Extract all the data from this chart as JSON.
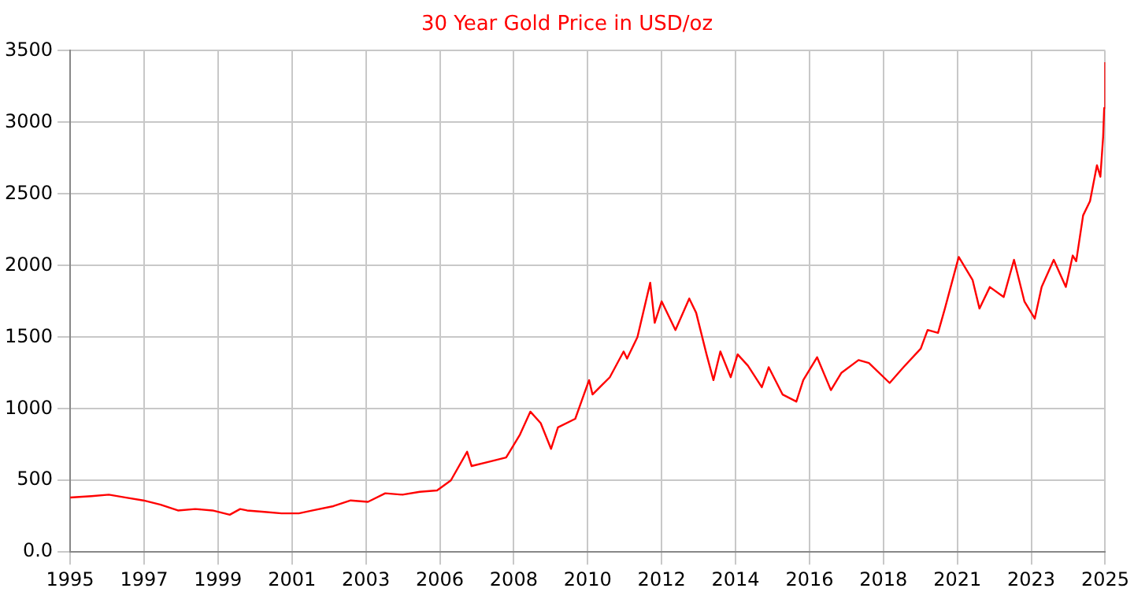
{
  "chart_data": {
    "type": "line",
    "title": "30 Year Gold Price in USD/oz",
    "xlim": [
      1994.88,
      2024.84
    ],
    "xticks": [
      {
        "value": 1994.88,
        "label": "1995"
      },
      {
        "value": 1997.02,
        "label": "1997"
      },
      {
        "value": 1999.16,
        "label": "1999"
      },
      {
        "value": 2001.3,
        "label": "2001"
      },
      {
        "value": 2003.44,
        "label": "2003"
      },
      {
        "value": 2005.58,
        "label": "2006"
      },
      {
        "value": 2007.72,
        "label": "2008"
      },
      {
        "value": 2009.86,
        "label": "2010"
      },
      {
        "value": 2012.0,
        "label": "2012"
      },
      {
        "value": 2014.14,
        "label": "2014"
      },
      {
        "value": 2016.28,
        "label": "2016"
      },
      {
        "value": 2018.42,
        "label": "2018"
      },
      {
        "value": 2020.56,
        "label": "2021"
      },
      {
        "value": 2022.7,
        "label": "2023"
      },
      {
        "value": 2024.84,
        "label": "2025"
      }
    ],
    "ylim": [
      0,
      3500
    ],
    "yticks": [
      {
        "value": 0,
        "label": "0.0"
      },
      500,
      1000,
      1500,
      2000,
      2500,
      3000,
      3500
    ],
    "grid": true,
    "legend": false,
    "marker": "none",
    "line_style": "solid",
    "series": [
      {
        "color": "#ff0000",
        "x": [
          1994.88,
          1995.5,
          1996.0,
          1996.5,
          1997.0,
          1997.5,
          1998.0,
          1998.5,
          1999.0,
          1999.5,
          1999.8,
          2000.0,
          2000.5,
          2001.0,
          2001.5,
          2001.9,
          2002.5,
          2003.0,
          2003.5,
          2004.0,
          2004.5,
          2005.0,
          2005.5,
          2005.9,
          2006.37,
          2006.5,
          2007.0,
          2007.5,
          2007.9,
          2008.2,
          2008.5,
          2008.8,
          2009.0,
          2009.5,
          2009.9,
          2010.0,
          2010.5,
          2010.9,
          2011.0,
          2011.3,
          2011.67,
          2011.8,
          2012.0,
          2012.4,
          2012.8,
          2013.0,
          2013.3,
          2013.5,
          2013.7,
          2014.0,
          2014.2,
          2014.5,
          2014.9,
          2015.1,
          2015.5,
          2015.9,
          2016.1,
          2016.5,
          2016.9,
          2017.2,
          2017.7,
          2018.0,
          2018.6,
          2019.0,
          2019.5,
          2019.7,
          2020.0,
          2020.2,
          2020.6,
          2021.0,
          2021.2,
          2021.5,
          2021.9,
          2022.2,
          2022.5,
          2022.8,
          2023.0,
          2023.35,
          2023.7,
          2023.9,
          2024.0,
          2024.2,
          2024.4,
          2024.6,
          2024.7,
          2024.78,
          2024.81,
          2024.84
        ],
        "values": [
          380,
          390,
          400,
          380,
          360,
          330,
          290,
          300,
          290,
          260,
          300,
          290,
          280,
          270,
          270,
          290,
          320,
          360,
          350,
          410,
          400,
          420,
          430,
          500,
          700,
          600,
          630,
          660,
          820,
          980,
          900,
          720,
          870,
          930,
          1200,
          1100,
          1220,
          1400,
          1350,
          1500,
          1880,
          1600,
          1750,
          1550,
          1770,
          1670,
          1380,
          1200,
          1400,
          1220,
          1380,
          1300,
          1150,
          1290,
          1100,
          1050,
          1200,
          1360,
          1130,
          1250,
          1340,
          1320,
          1180,
          1290,
          1420,
          1550,
          1530,
          1700,
          2060,
          1900,
          1700,
          1850,
          1780,
          2040,
          1750,
          1630,
          1850,
          2040,
          1850,
          2070,
          2030,
          2350,
          2450,
          2700,
          2620,
          2900,
          3100,
          3420
        ]
      }
    ]
  }
}
